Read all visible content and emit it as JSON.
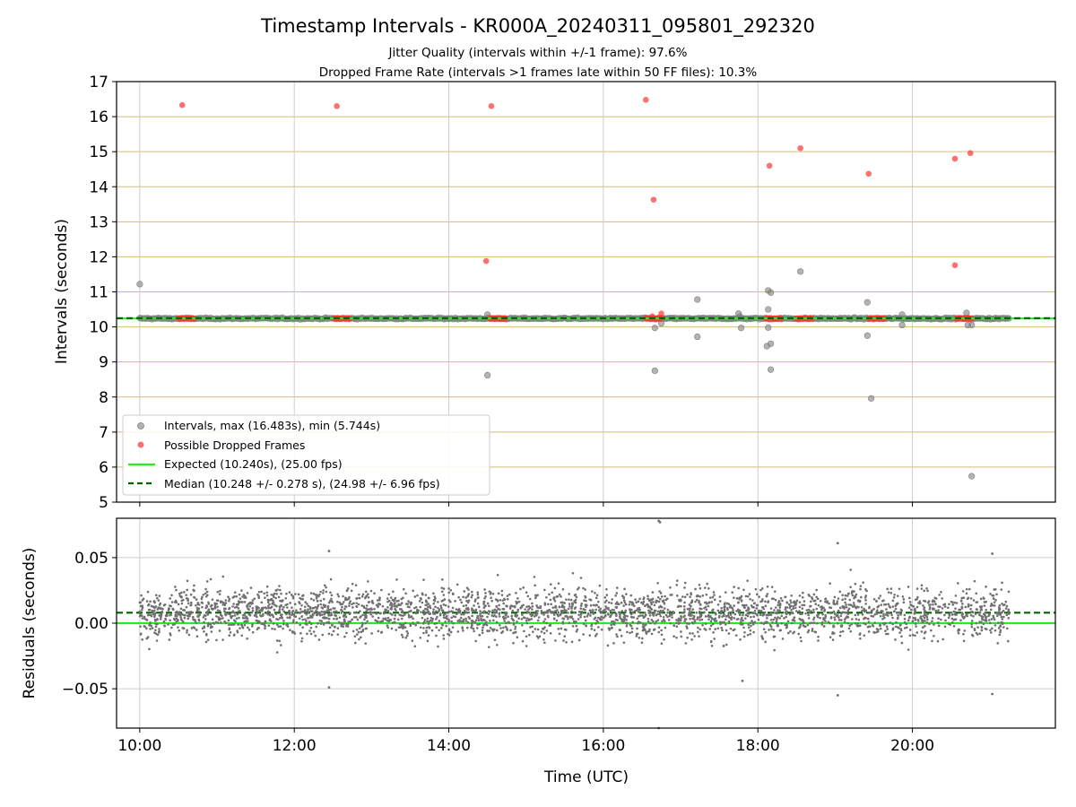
{
  "figure": {
    "title": "Timestamp Intervals - KR000A_20240311_095801_292320",
    "subtitle_line1": "Jitter Quality (intervals within +/-1 frame): 97.6%",
    "subtitle_line2": "Dropped Frame Rate (intervals >1 frames late within 50 FF files): 10.3%"
  },
  "colors": {
    "interval_point": "#808080",
    "dropped_point": "#ff3333",
    "expected_line": "#22ee22",
    "median_line": "#006400",
    "top_gridline": "#d4bc7a",
    "vgrid": "#cccccc",
    "residual_point": "#707070"
  },
  "chart_data": [
    {
      "type": "scatter",
      "panel": "intervals",
      "ylabel": "Intervals (seconds)",
      "xlabel": "",
      "ylim": [
        5,
        17
      ],
      "yticks": [
        5,
        6,
        7,
        8,
        9,
        10,
        11,
        12,
        13,
        14,
        15,
        16,
        17
      ],
      "xlim_hours": [
        9.7,
        21.85
      ],
      "xticks": [
        "10:00",
        "12:00",
        "14:00",
        "16:00",
        "18:00",
        "20:00"
      ],
      "xtick_hours": [
        10,
        12,
        14,
        16,
        18,
        20
      ],
      "grid": "horizontal and vertical",
      "legend_position": "bottom-left",
      "legend": [
        "Intervals, max (16.483s), min (5.744s)",
        "Possible Dropped Frames",
        "Expected (10.240s), (25.00 fps)",
        "Median (10.248 +/- 0.278 s), (24.98 +/- 6.96 fps)"
      ],
      "series": [
        {
          "name": "Intervals, max (16.483s), min (5.744s)",
          "marker": "circle",
          "band": {
            "x_start": "10:00",
            "x_end": "21:15",
            "y": 10.24
          },
          "points": [
            {
              "x": "10:00",
              "y": 11.22
            },
            {
              "x": "14:30",
              "y": 10.35
            },
            {
              "x": "14:30",
              "y": 8.62
            },
            {
              "x": "16:40",
              "y": 9.97
            },
            {
              "x": "16:40",
              "y": 8.75
            },
            {
              "x": "16:45",
              "y": 10.1
            },
            {
              "x": "17:13",
              "y": 10.78
            },
            {
              "x": "17:13",
              "y": 9.72
            },
            {
              "x": "17:45",
              "y": 10.38
            },
            {
              "x": "17:46",
              "y": 10.3
            },
            {
              "x": "17:47",
              "y": 9.97
            },
            {
              "x": "18:08",
              "y": 11.04
            },
            {
              "x": "18:10",
              "y": 10.98
            },
            {
              "x": "18:08",
              "y": 10.5
            },
            {
              "x": "18:08",
              "y": 9.98
            },
            {
              "x": "18:07",
              "y": 9.45
            },
            {
              "x": "18:10",
              "y": 9.52
            },
            {
              "x": "18:10",
              "y": 8.78
            },
            {
              "x": "18:33",
              "y": 11.58
            },
            {
              "x": "19:25",
              "y": 10.7
            },
            {
              "x": "19:25",
              "y": 9.75
            },
            {
              "x": "19:28",
              "y": 7.96
            },
            {
              "x": "19:52",
              "y": 10.35
            },
            {
              "x": "19:52",
              "y": 10.05
            },
            {
              "x": "20:42",
              "y": 10.4
            },
            {
              "x": "20:43",
              "y": 10.05
            },
            {
              "x": "20:46",
              "y": 10.05
            },
            {
              "x": "20:46",
              "y": 5.74
            }
          ]
        },
        {
          "name": "Possible Dropped Frames",
          "marker": "circle",
          "clusters": [
            {
              "x_start": "10:30",
              "x_end": "10:42",
              "y": 10.24
            },
            {
              "x_start": "12:31",
              "x_end": "12:43",
              "y": 10.24
            },
            {
              "x_start": "14:32",
              "x_end": "14:44",
              "y": 10.24
            },
            {
              "x_start": "16:33",
              "x_end": "16:45",
              "y": 10.24
            },
            {
              "x_start": "18:06",
              "x_end": "18:18",
              "y": 10.24
            },
            {
              "x_start": "18:30",
              "x_end": "18:42",
              "y": 10.24
            },
            {
              "x_start": "19:26",
              "x_end": "19:38",
              "y": 10.24
            },
            {
              "x_start": "20:34",
              "x_end": "20:46",
              "y": 10.24
            }
          ],
          "points": [
            {
              "x": "10:33",
              "y": 16.33
            },
            {
              "x": "12:33",
              "y": 16.3
            },
            {
              "x": "14:33",
              "y": 16.3
            },
            {
              "x": "16:33",
              "y": 16.48
            },
            {
              "x": "16:39",
              "y": 13.63
            },
            {
              "x": "14:29",
              "y": 11.88
            },
            {
              "x": "16:38",
              "y": 10.3
            },
            {
              "x": "16:45",
              "y": 10.38
            },
            {
              "x": "18:09",
              "y": 14.6
            },
            {
              "x": "18:33",
              "y": 15.1
            },
            {
              "x": "19:26",
              "y": 14.37
            },
            {
              "x": "20:33",
              "y": 14.8
            },
            {
              "x": "20:45",
              "y": 14.96
            },
            {
              "x": "20:33",
              "y": 11.76
            }
          ]
        },
        {
          "name": "Expected (10.240s), (25.00 fps)",
          "style": "solid",
          "y": 10.24
        },
        {
          "name": "Median (10.248 +/- 0.278 s), (24.98 +/- 6.96 fps)",
          "style": "dashed",
          "y": 10.248
        }
      ]
    },
    {
      "type": "scatter",
      "panel": "residuals",
      "ylabel": "Residuals (seconds)",
      "xlabel": "Time (UTC)",
      "ylim": [
        -0.08,
        0.08
      ],
      "yticks": [
        -0.05,
        0.0,
        0.05
      ],
      "ytick_labels": [
        "−0.05",
        "0.00",
        "0.05"
      ],
      "xlim_hours": [
        9.7,
        21.85
      ],
      "xticks": [
        "10:00",
        "12:00",
        "14:00",
        "16:00",
        "18:00",
        "20:00"
      ],
      "xtick_hours": [
        10,
        12,
        14,
        16,
        18,
        20
      ],
      "grid": "horizontal and vertical",
      "lines": [
        {
          "name": "expected",
          "y": 0.0,
          "style": "solid"
        },
        {
          "name": "median",
          "y": 0.008,
          "style": "dashed"
        }
      ],
      "points_description": {
        "x_start": "10:00",
        "x_end": "21:15",
        "center": 0.008,
        "typical_spread": 0.018,
        "count": 3200
      },
      "outliers": [
        {
          "x": "12:27",
          "y": 0.055
        },
        {
          "x": "12:27",
          "y": -0.049
        },
        {
          "x": "16:43",
          "y": 0.078
        },
        {
          "x": "16:44",
          "y": 0.077
        },
        {
          "x": "16:43",
          "y": -0.08
        },
        {
          "x": "17:48",
          "y": -0.044
        },
        {
          "x": "19:02",
          "y": 0.061
        },
        {
          "x": "19:02",
          "y": -0.055
        },
        {
          "x": "21:02",
          "y": 0.053
        },
        {
          "x": "21:02",
          "y": -0.054
        }
      ]
    }
  ]
}
